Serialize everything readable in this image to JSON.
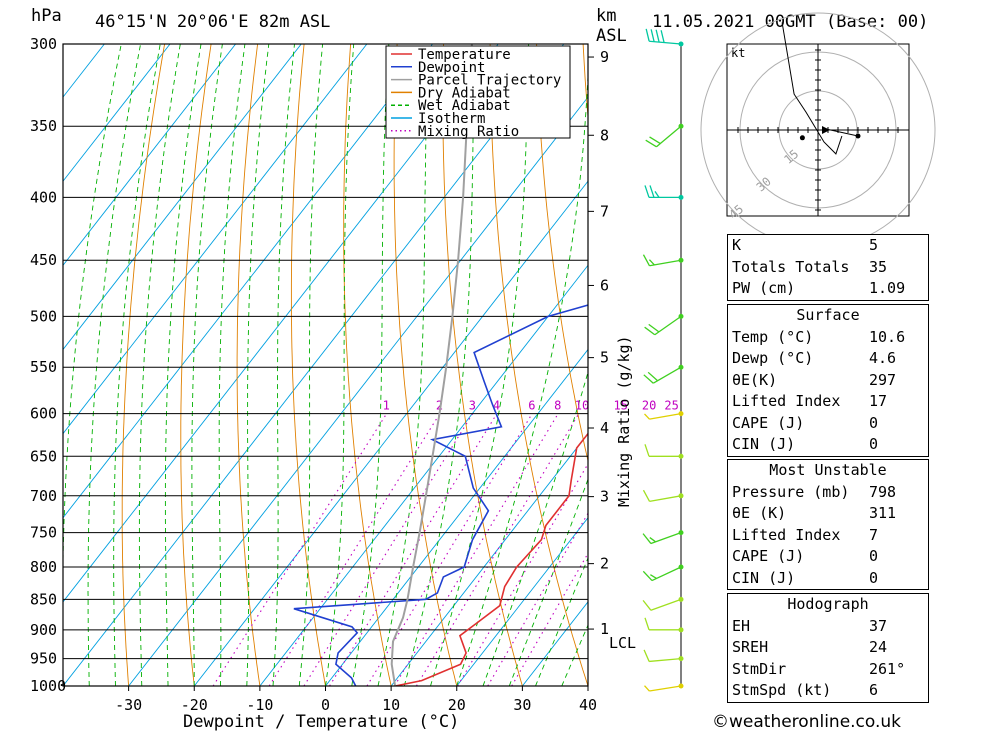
{
  "header": {
    "units_hpa": "hPa",
    "location": "46°15'N  20°06'E  82m  ASL",
    "units_km": "km",
    "units_asl": "ASL",
    "datetime": "11.05.2021  00GMT  (Base: 00)"
  },
  "legend": [
    {
      "label": "Temperature",
      "color": "#e03030",
      "style": "solid"
    },
    {
      "label": "Dewpoint",
      "color": "#2040d0",
      "style": "solid"
    },
    {
      "label": "Parcel Trajectory",
      "color": "#a0a0a0",
      "style": "solid"
    },
    {
      "label": "Dry Adiabat",
      "color": "#e08000",
      "style": "solid"
    },
    {
      "label": "Wet Adiabat",
      "color": "#00b000",
      "style": "dashed"
    },
    {
      "label": "Isotherm",
      "color": "#00a0e0",
      "style": "solid"
    },
    {
      "label": "Mixing Ratio",
      "color": "#c000c0",
      "style": "dotted"
    }
  ],
  "axes": {
    "xlabel": "Dewpoint / Temperature (°C)",
    "x_ticks": [
      "-30",
      "-20",
      "-10",
      "0",
      "10",
      "20",
      "30",
      "40"
    ],
    "pressure_ticks": [
      "300",
      "350",
      "400",
      "450",
      "500",
      "550",
      "600",
      "650",
      "700",
      "750",
      "800",
      "850",
      "900",
      "950",
      "1000"
    ],
    "km_ticks": [
      "9",
      "8",
      "7",
      "6",
      "5",
      "4",
      "3",
      "2",
      "1"
    ],
    "lcl_label": "LCL",
    "mixing_ratio_title": "Mixing Ratio (g/kg)",
    "mixing_ratio_labels": [
      "1",
      "2",
      "3",
      "4",
      "6",
      "8",
      "10",
      "15",
      "20",
      "25"
    ]
  },
  "chart_data": {
    "type": "line",
    "title": "46°15'N 20°06'E 82m ASL  11.05.2021 00GMT (Base: 00)",
    "xlabel": "Dewpoint / Temperature (°C)",
    "ylabel": "hPa",
    "xlim": [
      -40,
      40
    ],
    "ylim": [
      1000,
      300
    ],
    "y_scale": "log",
    "skew": true,
    "grid": true,
    "legend_position": "top-center",
    "series": [
      {
        "name": "Temperature",
        "color": "#e03030",
        "points": [
          [
            1000,
            10.6
          ],
          [
            990,
            14
          ],
          [
            960,
            18
          ],
          [
            940,
            17.5
          ],
          [
            910,
            14.5
          ],
          [
            890,
            15.5
          ],
          [
            860,
            17
          ],
          [
            830,
            15.5
          ],
          [
            800,
            15
          ],
          [
            760,
            15.5
          ],
          [
            740,
            14.5
          ],
          [
            700,
            14.5
          ],
          [
            680,
            13
          ],
          [
            640,
            10
          ],
          [
            620,
            10
          ],
          [
            590,
            9
          ],
          [
            560,
            6.5
          ],
          [
            530,
            4
          ],
          [
            500,
            1.5
          ],
          [
            470,
            -1.5
          ],
          [
            450,
            -4
          ],
          [
            430,
            -5
          ],
          [
            400,
            -8
          ],
          [
            370,
            -12
          ],
          [
            340,
            -16
          ],
          [
            320,
            -19
          ],
          [
            300,
            -22
          ]
        ]
      },
      {
        "name": "Dewpoint",
        "color": "#2040d0",
        "points": [
          [
            1000,
            4.6
          ],
          [
            985,
            3
          ],
          [
            960,
            -1
          ],
          [
            940,
            -2
          ],
          [
            905,
            -1.5
          ],
          [
            895,
            -3
          ],
          [
            865,
            -14
          ],
          [
            850,
            5
          ],
          [
            840,
            6
          ],
          [
            815,
            5
          ],
          [
            800,
            7
          ],
          [
            760,
            5
          ],
          [
            720,
            4
          ],
          [
            690,
            -1
          ],
          [
            650,
            -6
          ],
          [
            630,
            -13
          ],
          [
            615,
            -4
          ],
          [
            590,
            -8
          ],
          [
            565,
            -12
          ],
          [
            535,
            -17
          ],
          [
            500,
            -10
          ],
          [
            478,
            0
          ],
          [
            450,
            -3
          ],
          [
            430,
            -7
          ],
          [
            400,
            -12
          ],
          [
            380,
            -13
          ],
          [
            360,
            -14
          ],
          [
            330,
            -17
          ],
          [
            315,
            -19
          ],
          [
            305,
            -25
          ],
          [
            300,
            -26
          ]
        ]
      },
      {
        "name": "Parcel Trajectory",
        "color": "#a0a0a0",
        "points": [
          [
            1000,
            10.6
          ],
          [
            960,
            7.5
          ],
          [
            920,
            5.0
          ],
          [
            880,
            3.7
          ],
          [
            850,
            2.2
          ],
          [
            800,
            -0.8
          ],
          [
            750,
            -3.9
          ],
          [
            700,
            -7.3
          ],
          [
            650,
            -11.0
          ],
          [
            600,
            -15.0
          ],
          [
            550,
            -19.5
          ],
          [
            500,
            -24.6
          ],
          [
            450,
            -30.4
          ],
          [
            400,
            -37.1
          ],
          [
            350,
            -45.0
          ],
          [
            300,
            -54.0
          ]
        ]
      }
    ],
    "wind_barbs": [
      {
        "p": 1000,
        "dir": 261,
        "spd": 6
      },
      {
        "p": 950,
        "dir": 265,
        "spd": 10
      },
      {
        "p": 900,
        "dir": 270,
        "spd": 10
      },
      {
        "p": 850,
        "dir": 250,
        "spd": 10
      },
      {
        "p": 800,
        "dir": 245,
        "spd": 15
      },
      {
        "p": 750,
        "dir": 250,
        "spd": 15
      },
      {
        "p": 700,
        "dir": 260,
        "spd": 10
      },
      {
        "p": 650,
        "dir": 270,
        "spd": 10
      },
      {
        "p": 600,
        "dir": 260,
        "spd": 5
      },
      {
        "p": 550,
        "dir": 240,
        "spd": 20
      },
      {
        "p": 500,
        "dir": 235,
        "spd": 20
      },
      {
        "p": 450,
        "dir": 260,
        "spd": 15
      },
      {
        "p": 400,
        "dir": 270,
        "spd": 25
      },
      {
        "p": 350,
        "dir": 230,
        "spd": 20
      },
      {
        "p": 300,
        "dir": 275,
        "spd": 40
      }
    ],
    "hodograph": {
      "units": "kt",
      "ring_labels": [
        "15",
        "30",
        "45"
      ],
      "trace_uv": [
        [
          4,
          -1
        ],
        [
          3,
          -4
        ],
        [
          1,
          -2
        ],
        [
          -2,
          3
        ],
        [
          -4,
          6
        ],
        [
          -5,
          12
        ],
        [
          -6,
          18
        ]
      ],
      "storm_motion_uv": [
        1,
        -0.5
      ],
      "point_uv": [
        -2,
        -1
      ]
    }
  },
  "indices": {
    "general": [
      {
        "label": "K",
        "value": "5"
      },
      {
        "label": "Totals Totals",
        "value": "35"
      },
      {
        "label": "PW (cm)",
        "value": "1.09"
      }
    ],
    "surface_title": "Surface",
    "surface": [
      {
        "label": "Temp (°C)",
        "value": "10.6"
      },
      {
        "label": "Dewp (°C)",
        "value": "4.6"
      },
      {
        "label": "θE(K)",
        "value": "297"
      },
      {
        "label": "Lifted Index",
        "value": "17"
      },
      {
        "label": "CAPE (J)",
        "value": "0"
      },
      {
        "label": "CIN (J)",
        "value": "0"
      }
    ],
    "mu_title": "Most Unstable",
    "mu": [
      {
        "label": "Pressure (mb)",
        "value": "798"
      },
      {
        "label": "θE (K)",
        "value": "311"
      },
      {
        "label": "Lifted Index",
        "value": "7"
      },
      {
        "label": "CAPE (J)",
        "value": "0"
      },
      {
        "label": "CIN (J)",
        "value": "0"
      }
    ],
    "hodo_title": "Hodograph",
    "hodo": [
      {
        "label": "EH",
        "value": "37"
      },
      {
        "label": "SREH",
        "value": "24"
      },
      {
        "label": "StmDir",
        "value": "261°"
      },
      {
        "label": "StmSpd (kt)",
        "value": "6"
      }
    ]
  },
  "footer": {
    "copyright": "©weatheronline.co.uk"
  }
}
